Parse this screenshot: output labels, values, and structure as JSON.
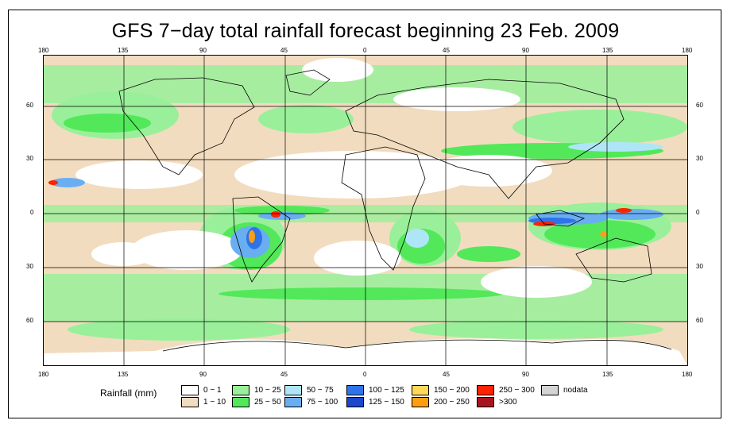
{
  "title": "GFS 7−day total rainfall forecast beginning 23 Feb. 2009",
  "axes": {
    "lon_labels": [
      "180",
      "135",
      "90",
      "45",
      "0",
      "45",
      "90",
      "135",
      "180"
    ],
    "lat_labels": [
      "60",
      "30",
      "0",
      "30",
      "60"
    ]
  },
  "legend": {
    "title": "Rainfall (mm)",
    "items": [
      {
        "label": "0 − 1",
        "color": "#ffffff"
      },
      {
        "label": "1 − 10",
        "color": "#f2dcbf"
      },
      {
        "label": "10 − 25",
        "color": "#9af09a"
      },
      {
        "label": "25 − 50",
        "color": "#52e85a"
      },
      {
        "label": "50 − 75",
        "color": "#aee6f8"
      },
      {
        "label": "75 − 100",
        "color": "#6aaef2"
      },
      {
        "label": "100 − 125",
        "color": "#2e74e8"
      },
      {
        "label": "125 − 150",
        "color": "#1c46cc"
      },
      {
        "label": "150 − 200",
        "color": "#ffd85a"
      },
      {
        "label": "200 − 250",
        "color": "#ff9f10"
      },
      {
        "label": "250 − 300",
        "color": "#ff2200"
      },
      {
        "label": ">300",
        "color": "#a8141e"
      },
      {
        "label": "nodata",
        "color": "#d4d4d4"
      }
    ]
  }
}
